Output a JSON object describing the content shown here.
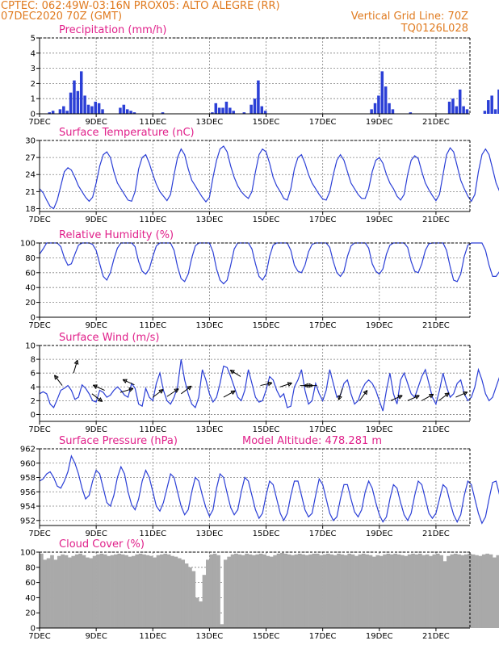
{
  "header": {
    "line1_left": "CPTEC:   062:49W-03:16N   PROX05: ALTO ALEGRE (RR)",
    "line2_left": "07DEC2020 70Z (GMT)",
    "line2_right": "Vertical Grid Line: 70Z",
    "line3_right": "TQ0126L028"
  },
  "colors": {
    "header": "#e07b20",
    "title": "#e0208a",
    "line": "#2b3fd6",
    "bar": "#2b3fd6",
    "cloud": "#a9a9a9",
    "grid": "#808080"
  },
  "x_ticks": [
    "7DEC",
    "9DEC",
    "11DEC",
    "13DEC",
    "15DEC",
    "17DEC",
    "19DEC",
    "21DEC"
  ],
  "x_tick_days": [
    0,
    2,
    4,
    6,
    8,
    10,
    12,
    14
  ],
  "x_range_days": [
    0,
    15.2
  ],
  "chart_data": [
    {
      "id": "precip",
      "type": "bar",
      "title": "Precipitation (mm/h)",
      "ylim": [
        0,
        5
      ],
      "yticks": [
        0,
        1,
        2,
        3,
        4,
        5
      ],
      "step_hours": 3,
      "values": [
        0,
        0,
        0.1,
        0.2,
        0,
        0.3,
        0.5,
        0.2,
        1.4,
        2.2,
        1.5,
        2.8,
        1.2,
        0.6,
        0.5,
        0.8,
        0.7,
        0.3,
        0,
        0,
        0,
        0,
        0.4,
        0.6,
        0.3,
        0.2,
        0.1,
        0,
        0,
        0,
        0,
        0,
        0,
        0,
        0.1,
        0,
        0,
        0,
        0,
        0,
        0,
        0,
        0,
        0,
        0,
        0,
        0,
        0,
        0.1,
        0.7,
        0.4,
        0.4,
        0.8,
        0.4,
        0.2,
        0,
        0,
        0.1,
        0,
        0.6,
        1.0,
        2.2,
        0.5,
        0.2,
        0,
        0,
        0,
        0,
        0,
        0,
        0,
        0,
        0,
        0,
        0,
        0,
        0,
        0,
        0,
        0,
        0,
        0,
        0,
        0,
        0,
        0,
        0,
        0,
        0,
        0,
        0,
        0,
        0,
        0.3,
        0.7,
        1.2,
        2.8,
        1.8,
        0.7,
        0.3,
        0,
        0,
        0,
        0,
        0.1,
        0,
        0,
        0,
        0,
        0,
        0,
        0,
        0,
        0,
        0,
        0.8,
        1.0,
        0.5,
        1.6,
        0.5,
        0.3,
        0,
        0,
        0,
        0,
        0.2,
        0.9,
        1.2,
        0.3,
        1.6,
        0.1,
        0,
        0,
        0,
        0,
        0.2,
        0.4,
        1.5,
        0.8,
        2.5,
        1.0,
        1.8,
        0.4,
        0,
        0,
        0
      ]
    },
    {
      "id": "temp",
      "type": "line",
      "title": "Surface Temperature (nC)",
      "ylim": [
        17.5,
        30
      ],
      "yticks": [
        18,
        21,
        24,
        27,
        30
      ],
      "step_hours": 3,
      "values": [
        21.5,
        20.8,
        19.5,
        18.4,
        18.0,
        19.5,
        22.0,
        24.5,
        25.2,
        24.8,
        23.5,
        22.0,
        21.0,
        20.0,
        19.3,
        20.0,
        22.5,
        25.5,
        27.5,
        28.0,
        27.0,
        24.5,
        22.5,
        21.5,
        20.5,
        19.5,
        19.3,
        21.0,
        25.0,
        27.0,
        27.5,
        26.0,
        24.0,
        22.3,
        21.0,
        20.2,
        19.4,
        20.5,
        24.0,
        27.0,
        28.5,
        27.5,
        25.0,
        23.0,
        22.0,
        21.0,
        20.0,
        19.2,
        20.0,
        23.5,
        26.5,
        28.5,
        29.0,
        28.0,
        25.5,
        23.5,
        22.0,
        21.0,
        20.3,
        19.8,
        21.0,
        24.5,
        27.5,
        28.5,
        28.0,
        26.0,
        23.5,
        22.0,
        21.0,
        19.8,
        19.5,
        21.5,
        25.0,
        27.0,
        27.5,
        26.0,
        24.0,
        22.5,
        21.5,
        20.5,
        19.7,
        19.5,
        21.0,
        24.0,
        26.5,
        27.5,
        26.5,
        24.5,
        22.5,
        21.5,
        20.5,
        19.8,
        19.8,
        21.5,
        24.5,
        26.5,
        27.0,
        26.0,
        24.0,
        22.5,
        21.5,
        20.2,
        19.5,
        20.5,
        24.0,
        26.5,
        27.3,
        26.8,
        24.5,
        22.5,
        21.3,
        20.3,
        19.4,
        20.5,
        24.0,
        27.5,
        28.7,
        28.0,
        25.5,
        23.0,
        21.5,
        20.2,
        19.3,
        20.5,
        24.5,
        27.5,
        28.5,
        27.5,
        25.0,
        22.5,
        21.0,
        20.0,
        19.2,
        21.0,
        24.5,
        25.5,
        25.0,
        23.5,
        21.5,
        20.0,
        19.3,
        19.0,
        21.0,
        25.5,
        28.5,
        28.0,
        26.5,
        25.0,
        24.3,
        25.5,
        25.0,
        24.0
      ]
    },
    {
      "id": "rh",
      "type": "line",
      "title": "Relative Humidity (%)",
      "ylim": [
        0,
        100
      ],
      "yticks": [
        0,
        20,
        40,
        60,
        80,
        100
      ],
      "step_hours": 3,
      "values": [
        85,
        92,
        100,
        100,
        100,
        100,
        95,
        80,
        70,
        72,
        85,
        97,
        100,
        100,
        100,
        98,
        90,
        72,
        55,
        50,
        60,
        78,
        93,
        100,
        100,
        100,
        100,
        95,
        75,
        62,
        58,
        65,
        82,
        96,
        100,
        100,
        100,
        100,
        90,
        68,
        52,
        48,
        58,
        80,
        96,
        100,
        100,
        100,
        100,
        88,
        65,
        50,
        45,
        50,
        70,
        92,
        100,
        100,
        100,
        100,
        92,
        72,
        55,
        50,
        58,
        82,
        97,
        100,
        100,
        100,
        100,
        90,
        70,
        62,
        60,
        70,
        88,
        98,
        100,
        100,
        100,
        100,
        94,
        75,
        60,
        55,
        62,
        82,
        96,
        100,
        100,
        100,
        100,
        93,
        72,
        62,
        58,
        65,
        85,
        97,
        100,
        100,
        100,
        100,
        94,
        75,
        62,
        60,
        72,
        90,
        99,
        100,
        100,
        100,
        100,
        90,
        68,
        50,
        48,
        58,
        82,
        97,
        100,
        100,
        100,
        100,
        90,
        70,
        55,
        55,
        62,
        85,
        97,
        100,
        100,
        100,
        100,
        92,
        82,
        78,
        80,
        90,
        100,
        100,
        100,
        100,
        95,
        75,
        55,
        50,
        60,
        72,
        80,
        82,
        75,
        86
      ]
    },
    {
      "id": "wind",
      "type": "line",
      "title": "Surface Wind (m/s)",
      "ylim": [
        -1,
        10
      ],
      "yticks": [
        0,
        2,
        4,
        6,
        8,
        10
      ],
      "step_hours": 3,
      "values": [
        3.0,
        3.3,
        3.0,
        1.5,
        1.0,
        2.2,
        3.5,
        3.8,
        4.2,
        3.5,
        2.2,
        2.5,
        4.3,
        3.8,
        3.0,
        2.0,
        1.8,
        3.5,
        3.2,
        2.5,
        2.8,
        3.5,
        4.0,
        3.5,
        2.8,
        2.5,
        4.5,
        3.8,
        1.5,
        1.2,
        3.8,
        2.5,
        2.0,
        4.5,
        6.0,
        3.5,
        2.0,
        1.5,
        2.5,
        4.0,
        8.0,
        5.0,
        3.0,
        1.5,
        1.0,
        2.5,
        6.5,
        5.0,
        3.0,
        1.8,
        2.5,
        4.5,
        7.0,
        6.8,
        5.5,
        4.0,
        2.5,
        2.0,
        3.5,
        6.5,
        4.5,
        2.5,
        1.8,
        2.0,
        3.5,
        5.5,
        5.0,
        3.5,
        2.5,
        3.0,
        1.0,
        1.2,
        4.0,
        5.0,
        6.5,
        3.5,
        1.5,
        2.0,
        4.5,
        3.0,
        2.0,
        3.5,
        6.5,
        4.5,
        2.5,
        2.8,
        4.5,
        5.0,
        3.0,
        1.5,
        2.0,
        3.5,
        4.5,
        5.0,
        4.5,
        3.5,
        2.0,
        0.5,
        3.5,
        6.0,
        3.0,
        1.5,
        5.0,
        6.0,
        4.5,
        3.0,
        2.5,
        4.0,
        5.5,
        6.5,
        4.5,
        2.5,
        1.5,
        3.5,
        6.0,
        4.0,
        2.5,
        3.0,
        4.5,
        5.0,
        3.0,
        2.0,
        2.5,
        4.0,
        6.5,
        5.0,
        3.0,
        2.0,
        2.5,
        4.0,
        5.5,
        4.5,
        3.0,
        2.5,
        2.0,
        3.5,
        5.0,
        5.5,
        4.0,
        3.0,
        3.5,
        3.5,
        5.5,
        7.5,
        6.0,
        4.5,
        3.0,
        2.5,
        3.0,
        3.5,
        2.0,
        3.0
      ],
      "arrows": [
        {
          "day": 0.8,
          "speed": 4.2,
          "dx": -0.6,
          "dy": 0.8
        },
        {
          "day": 1.2,
          "speed": 6.0,
          "dx": 0.3,
          "dy": 1.0
        },
        {
          "day": 1.85,
          "speed": 3.0,
          "dx": 0.8,
          "dy": -0.6
        },
        {
          "day": 2.3,
          "speed": 3.5,
          "dx": -0.9,
          "dy": 0.4
        },
        {
          "day": 2.85,
          "speed": 3.2,
          "dx": 1.0,
          "dy": 0.3
        },
        {
          "day": 3.35,
          "speed": 4.3,
          "dx": -0.9,
          "dy": 0.4
        },
        {
          "day": 4.0,
          "speed": 2.5,
          "dx": 0.8,
          "dy": 0.6
        },
        {
          "day": 4.5,
          "speed": 2.6,
          "dx": 0.9,
          "dy": 0.6
        },
        {
          "day": 5.0,
          "speed": 3.0,
          "dx": 0.8,
          "dy": 0.6
        },
        {
          "day": 6.5,
          "speed": 2.5,
          "dx": 0.9,
          "dy": 0.5
        },
        {
          "day": 7.1,
          "speed": 5.5,
          "dx": -0.8,
          "dy": 0.5
        },
        {
          "day": 7.8,
          "speed": 4.2,
          "dx": 0.9,
          "dy": 0.2
        },
        {
          "day": 8.5,
          "speed": 4.0,
          "dx": 0.9,
          "dy": 0.3
        },
        {
          "day": 9.2,
          "speed": 4.2,
          "dx": 1.0,
          "dy": 0.0
        },
        {
          "day": 9.8,
          "speed": 4.2,
          "dx": -1.0,
          "dy": 0.0
        },
        {
          "day": 10.7,
          "speed": 3.8,
          "dx": -0.3,
          "dy": -0.9
        },
        {
          "day": 11.3,
          "speed": 2.0,
          "dx": 0.6,
          "dy": 0.8
        },
        {
          "day": 12.4,
          "speed": 2.0,
          "dx": 0.9,
          "dy": 0.4
        },
        {
          "day": 13.0,
          "speed": 2.0,
          "dx": 0.9,
          "dy": 0.4
        },
        {
          "day": 13.5,
          "speed": 2.0,
          "dx": 0.9,
          "dy": 0.5
        },
        {
          "day": 14.1,
          "speed": 2.0,
          "dx": 0.8,
          "dy": 0.6
        },
        {
          "day": 14.7,
          "speed": 2.5,
          "dx": 0.9,
          "dy": 0.4
        }
      ]
    },
    {
      "id": "pressure",
      "type": "line",
      "title": "Surface Pressure (hPa)",
      "annotation": "Model Altitude: 478.281 m",
      "ylim": [
        951.3,
        962
      ],
      "yticks": [
        952,
        954,
        956,
        958,
        960,
        962
      ],
      "step_hours": 3,
      "values": [
        957.5,
        957.8,
        958.5,
        958.8,
        958.0,
        956.8,
        956.5,
        957.5,
        958.8,
        961.0,
        960.0,
        958.5,
        956.5,
        955.0,
        955.5,
        957.5,
        959.0,
        958.5,
        956.5,
        954.5,
        954.0,
        955.5,
        958.0,
        959.5,
        958.5,
        956.0,
        954.2,
        953.5,
        955.0,
        957.5,
        959.0,
        958.0,
        956.0,
        954.0,
        953.3,
        954.5,
        956.5,
        958.5,
        958.0,
        956.0,
        954.0,
        952.8,
        953.5,
        956.0,
        958.0,
        957.5,
        955.5,
        953.8,
        952.6,
        953.5,
        956.5,
        958.5,
        958.0,
        955.8,
        953.8,
        952.8,
        953.5,
        956.0,
        958.0,
        957.5,
        955.5,
        953.5,
        952.3,
        953.0,
        955.5,
        957.5,
        957.0,
        955.0,
        953.0,
        952.0,
        953.0,
        955.5,
        957.5,
        957.5,
        955.5,
        953.5,
        952.5,
        953.0,
        955.5,
        957.8,
        957.0,
        955.0,
        953.0,
        952.0,
        952.5,
        955.0,
        957.0,
        957.0,
        955.0,
        953.2,
        952.5,
        953.5,
        956.0,
        957.5,
        956.5,
        954.5,
        952.8,
        951.8,
        952.5,
        955.0,
        957.0,
        956.5,
        954.5,
        952.8,
        952.0,
        953.0,
        955.5,
        957.5,
        957.0,
        955.0,
        953.0,
        952.3,
        953.0,
        955.0,
        957.0,
        956.5,
        954.5,
        952.8,
        951.8,
        952.8,
        955.5,
        957.5,
        957.0,
        955.0,
        953.0,
        951.6,
        952.5,
        955.0,
        957.3,
        957.5,
        955.5,
        953.5,
        952.3,
        952.8,
        955.0,
        957.0,
        956.5,
        954.5,
        953.0,
        952.5,
        953.5,
        955.5,
        957.0,
        956.5,
        954.0,
        952.5,
        952.0,
        953.0,
        955.5,
        957.5,
        955.5,
        953.0,
        952.0,
        952.5,
        954.5
      ]
    },
    {
      "id": "cloud",
      "type": "area",
      "title": "Cloud Cover (%)",
      "ylim": [
        0,
        100
      ],
      "yticks": [
        0,
        20,
        40,
        60,
        80,
        100
      ],
      "step_hours": 3,
      "values": [
        98,
        90,
        92,
        96,
        90,
        95,
        97,
        96,
        93,
        95,
        97,
        98,
        96,
        93,
        92,
        95,
        97,
        98,
        97,
        95,
        96,
        97,
        98,
        97,
        96,
        94,
        95,
        97,
        98,
        97,
        96,
        95,
        93,
        96,
        97,
        98,
        97,
        95,
        94,
        92,
        90,
        85,
        80,
        75,
        40,
        35,
        70,
        90,
        97,
        98,
        96,
        5,
        90,
        94,
        97,
        98,
        97,
        96,
        98,
        97,
        96,
        97,
        98,
        97,
        95,
        94,
        96,
        98,
        99,
        98,
        97,
        96,
        97,
        98,
        97,
        96,
        97,
        98,
        98,
        96,
        97,
        98,
        97,
        96,
        98,
        97,
        96,
        98,
        97,
        95,
        97,
        98,
        97,
        96,
        94,
        96,
        95,
        97,
        98,
        97,
        98,
        97,
        96,
        95,
        97,
        98,
        97,
        98,
        96,
        97,
        95,
        97,
        98,
        96,
        88,
        95,
        97,
        98,
        97,
        96,
        97,
        98,
        97,
        96,
        95,
        97,
        98,
        97,
        93,
        96,
        98,
        97,
        95,
        97,
        98,
        97,
        96,
        95,
        97,
        98,
        97,
        96,
        98,
        97,
        96,
        98,
        97,
        96,
        98,
        97
      ]
    }
  ]
}
